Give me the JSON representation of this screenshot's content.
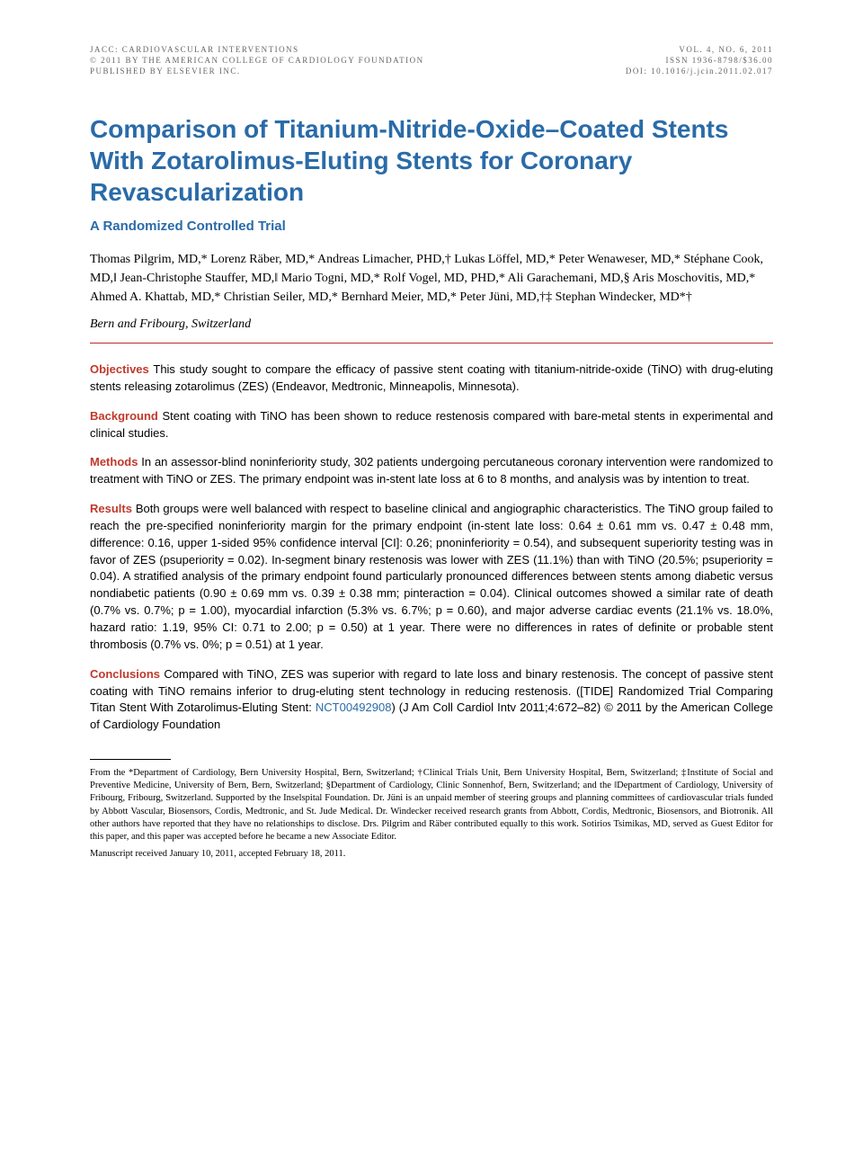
{
  "header": {
    "left": [
      "JACC: CARDIOVASCULAR INTERVENTIONS",
      "© 2011 BY THE AMERICAN COLLEGE OF CARDIOLOGY FOUNDATION",
      "PUBLISHED BY ELSEVIER INC."
    ],
    "right": [
      "VOL. 4, NO. 6, 2011",
      "ISSN 1936-8798/$36.00",
      "DOI: 10.1016/j.jcin.2011.02.017"
    ]
  },
  "title": "Comparison of Titanium-Nitride-Oxide–Coated Stents With Zotarolimus-Eluting Stents for Coronary Revascularization",
  "subtitle": "A Randomized Controlled Trial",
  "authors": "Thomas Pilgrim, MD,* Lorenz Räber, MD,* Andreas Limacher, PHD,† Lukas Löffel, MD,* Peter Wenaweser, MD,* Stéphane Cook, MD,‖ Jean-Christophe Stauffer, MD,‖ Mario Togni, MD,* Rolf Vogel, MD, PHD,* Ali Garachemani, MD,§ Aris Moschovitis, MD,* Ahmed A. Khattab, MD,* Christian Seiler, MD,* Bernhard Meier, MD,* Peter Jüni, MD,†‡ Stephan Windecker, MD*†",
  "affiliation": "Bern and Fribourg, Switzerland",
  "abstract": {
    "objectives": {
      "label": "Objectives",
      "text": "This study sought to compare the efficacy of passive stent coating with titanium-nitride-oxide (TiNO) with drug-eluting stents releasing zotarolimus (ZES) (Endeavor, Medtronic, Minneapolis, Minnesota)."
    },
    "background": {
      "label": "Background",
      "text": "Stent coating with TiNO has been shown to reduce restenosis compared with bare-metal stents in experimental and clinical studies."
    },
    "methods": {
      "label": "Methods",
      "text": "In an assessor-blind noninferiority study, 302 patients undergoing percutaneous coronary intervention were randomized to treatment with TiNO or ZES. The primary endpoint was in-stent late loss at 6 to 8 months, and analysis was by intention to treat."
    },
    "results": {
      "label": "Results",
      "text": "Both groups were well balanced with respect to baseline clinical and angiographic characteristics. The TiNO group failed to reach the pre-specified noninferiority margin for the primary endpoint (in-stent late loss: 0.64 ± 0.61 mm vs. 0.47 ± 0.48 mm, difference: 0.16, upper 1-sided 95% confidence interval [CI]: 0.26; pnoninferiority = 0.54), and subsequent superiority testing was in favor of ZES (psuperiority = 0.02). In-segment binary restenosis was lower with ZES (11.1%) than with TiNO (20.5%; psuperiority = 0.04). A stratified analysis of the primary endpoint found particularly pronounced differences between stents among diabetic versus nondiabetic patients (0.90 ± 0.69 mm vs. 0.39 ± 0.38 mm; pinteraction = 0.04). Clinical outcomes showed a similar rate of death (0.7% vs. 0.7%; p = 1.00), myocardial infarction (5.3% vs. 6.7%; p = 0.60), and major adverse cardiac events (21.1% vs. 18.0%, hazard ratio: 1.19, 95% CI: 0.71 to 2.00; p = 0.50) at 1 year. There were no differences in rates of definite or probable stent thrombosis (0.7% vs. 0%; p = 0.51) at 1 year."
    },
    "conclusions": {
      "label": "Conclusions",
      "text_before_link": "Compared with TiNO, ZES was superior with regard to late loss and binary restenosis. The concept of passive stent coating with TiNO remains inferior to drug-eluting stent technology in reducing restenosis. ([TIDE] Randomized Trial Comparing Titan Stent With Zotarolimus-Eluting Stent: ",
      "link": "NCT00492908",
      "text_after_link": ")   (J Am Coll Cardiol Intv 2011;4:672–82) © 2011 by the American College of Cardiology Foundation"
    }
  },
  "footnote": "From the *Department of Cardiology, Bern University Hospital, Bern, Switzerland; †Clinical Trials Unit, Bern University Hospital, Bern, Switzerland; ‡Institute of Social and Preventive Medicine, University of Bern, Bern, Switzerland; §Department of Cardiology, Clinic Sonnenhof, Bern, Switzerland; and the ‖Department of Cardiology, University of Fribourg, Fribourg, Switzerland. Supported by the Inselspital Foundation. Dr. Jüni is an unpaid member of steering groups and planning committees of cardiovascular trials funded by Abbott Vascular, Biosensors, Cordis, Medtronic, and St. Jude Medical. Dr. Windecker received research grants from Abbott, Cordis, Medtronic, Biosensors, and Biotronik. All other authors have reported that they have no relationships to disclose. Drs. Pilgrim and Räber contributed equally to this work. Sotirios Tsimikas, MD, served as Guest Editor for this paper, and this paper was accepted before he became a new Associate Editor.",
  "manuscript": "Manuscript received January 10, 2011, accepted February 18, 2011."
}
